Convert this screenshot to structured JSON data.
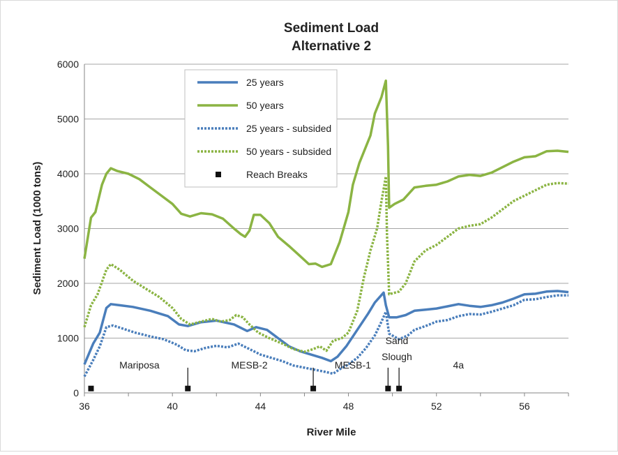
{
  "chart_data": {
    "type": "line",
    "title": "Sediment Load",
    "subtitle": "Alternative 2",
    "xlabel": "River Mile",
    "ylabel": "Sediment Load (1000 tons)",
    "xlim": [
      36,
      58
    ],
    "ylim": [
      0,
      6000
    ],
    "x_ticks": [
      36,
      40,
      44,
      48,
      52,
      56
    ],
    "y_ticks": [
      0,
      1000,
      2000,
      3000,
      4000,
      5000,
      6000
    ],
    "grid": "horizontal",
    "legend_position": "top-left",
    "colors": {
      "blue": "#4a7ebb",
      "green": "#8bb443",
      "marker": "#111111"
    },
    "series": [
      {
        "name": "25 years",
        "style": "solid",
        "color": "#4a7ebb",
        "points": [
          [
            36.0,
            520
          ],
          [
            36.4,
            900
          ],
          [
            36.7,
            1100
          ],
          [
            37.0,
            1550
          ],
          [
            37.2,
            1620
          ],
          [
            37.6,
            1600
          ],
          [
            38.2,
            1570
          ],
          [
            39.0,
            1500
          ],
          [
            39.8,
            1400
          ],
          [
            40.3,
            1250
          ],
          [
            40.7,
            1220
          ],
          [
            41.3,
            1290
          ],
          [
            42.0,
            1320
          ],
          [
            42.8,
            1250
          ],
          [
            43.4,
            1130
          ],
          [
            43.8,
            1200
          ],
          [
            44.3,
            1150
          ],
          [
            44.8,
            1000
          ],
          [
            45.3,
            850
          ],
          [
            45.8,
            760
          ],
          [
            46.3,
            700
          ],
          [
            46.8,
            640
          ],
          [
            47.2,
            580
          ],
          [
            47.5,
            660
          ],
          [
            47.9,
            850
          ],
          [
            48.4,
            1150
          ],
          [
            48.9,
            1450
          ],
          [
            49.2,
            1650
          ],
          [
            49.6,
            1830
          ],
          [
            49.7,
            1600
          ],
          [
            49.85,
            1380
          ],
          [
            50.2,
            1380
          ],
          [
            50.6,
            1420
          ],
          [
            51.0,
            1500
          ],
          [
            51.5,
            1520
          ],
          [
            52.0,
            1540
          ],
          [
            52.5,
            1580
          ],
          [
            53.0,
            1620
          ],
          [
            53.5,
            1590
          ],
          [
            54.0,
            1570
          ],
          [
            54.5,
            1600
          ],
          [
            55.0,
            1650
          ],
          [
            55.5,
            1720
          ],
          [
            56.0,
            1800
          ],
          [
            56.5,
            1810
          ],
          [
            57.0,
            1850
          ],
          [
            57.5,
            1860
          ],
          [
            58.0,
            1840
          ]
        ]
      },
      {
        "name": "50 years",
        "style": "solid",
        "color": "#8bb443",
        "points": [
          [
            36.0,
            2450
          ],
          [
            36.3,
            3200
          ],
          [
            36.5,
            3300
          ],
          [
            36.8,
            3800
          ],
          [
            37.0,
            4000
          ],
          [
            37.2,
            4100
          ],
          [
            37.5,
            4050
          ],
          [
            38.0,
            4000
          ],
          [
            38.5,
            3900
          ],
          [
            39.0,
            3750
          ],
          [
            39.5,
            3600
          ],
          [
            40.0,
            3450
          ],
          [
            40.4,
            3270
          ],
          [
            40.8,
            3220
          ],
          [
            41.3,
            3280
          ],
          [
            41.8,
            3260
          ],
          [
            42.3,
            3180
          ],
          [
            42.8,
            3000
          ],
          [
            43.1,
            2900
          ],
          [
            43.3,
            2850
          ],
          [
            43.5,
            2960
          ],
          [
            43.7,
            3250
          ],
          [
            44.0,
            3250
          ],
          [
            44.4,
            3100
          ],
          [
            44.8,
            2850
          ],
          [
            45.3,
            2680
          ],
          [
            45.8,
            2500
          ],
          [
            46.2,
            2350
          ],
          [
            46.5,
            2360
          ],
          [
            46.8,
            2300
          ],
          [
            47.2,
            2350
          ],
          [
            47.6,
            2750
          ],
          [
            48.0,
            3300
          ],
          [
            48.2,
            3800
          ],
          [
            48.5,
            4200
          ],
          [
            49.0,
            4700
          ],
          [
            49.2,
            5100
          ],
          [
            49.5,
            5400
          ],
          [
            49.7,
            5700
          ],
          [
            49.8,
            4500
          ],
          [
            49.85,
            3380
          ],
          [
            50.1,
            3450
          ],
          [
            50.5,
            3530
          ],
          [
            51.0,
            3750
          ],
          [
            51.5,
            3780
          ],
          [
            52.0,
            3800
          ],
          [
            52.5,
            3860
          ],
          [
            53.0,
            3950
          ],
          [
            53.5,
            3980
          ],
          [
            54.0,
            3960
          ],
          [
            54.5,
            4020
          ],
          [
            55.0,
            4120
          ],
          [
            55.5,
            4220
          ],
          [
            56.0,
            4300
          ],
          [
            56.5,
            4320
          ],
          [
            57.0,
            4410
          ],
          [
            57.5,
            4420
          ],
          [
            58.0,
            4400
          ]
        ]
      },
      {
        "name": "25 years - subsided",
        "style": "dotted",
        "color": "#4a7ebb",
        "points": [
          [
            36.0,
            300
          ],
          [
            36.4,
            600
          ],
          [
            36.7,
            850
          ],
          [
            37.0,
            1200
          ],
          [
            37.3,
            1230
          ],
          [
            37.7,
            1180
          ],
          [
            38.3,
            1100
          ],
          [
            39.0,
            1030
          ],
          [
            39.6,
            980
          ],
          [
            40.2,
            880
          ],
          [
            40.6,
            780
          ],
          [
            41.0,
            760
          ],
          [
            41.5,
            820
          ],
          [
            42.0,
            860
          ],
          [
            42.5,
            830
          ],
          [
            43.0,
            900
          ],
          [
            43.5,
            800
          ],
          [
            44.0,
            700
          ],
          [
            44.5,
            640
          ],
          [
            45.0,
            580
          ],
          [
            45.5,
            500
          ],
          [
            46.0,
            460
          ],
          [
            46.5,
            420
          ],
          [
            47.0,
            380
          ],
          [
            47.3,
            350
          ],
          [
            47.6,
            430
          ],
          [
            48.0,
            520
          ],
          [
            48.4,
            640
          ],
          [
            48.8,
            820
          ],
          [
            49.2,
            1050
          ],
          [
            49.5,
            1300
          ],
          [
            49.7,
            1480
          ],
          [
            49.85,
            1080
          ],
          [
            50.3,
            980
          ],
          [
            50.7,
            1050
          ],
          [
            51.0,
            1150
          ],
          [
            51.5,
            1220
          ],
          [
            52.0,
            1300
          ],
          [
            52.5,
            1330
          ],
          [
            53.0,
            1400
          ],
          [
            53.5,
            1440
          ],
          [
            54.0,
            1430
          ],
          [
            54.5,
            1480
          ],
          [
            55.0,
            1540
          ],
          [
            55.5,
            1600
          ],
          [
            56.0,
            1700
          ],
          [
            56.5,
            1710
          ],
          [
            57.0,
            1750
          ],
          [
            57.5,
            1780
          ],
          [
            58.0,
            1780
          ]
        ]
      },
      {
        "name": "50 years - subsided",
        "style": "dotted",
        "color": "#8bb443",
        "points": [
          [
            36.0,
            1200
          ],
          [
            36.3,
            1600
          ],
          [
            36.6,
            1800
          ],
          [
            37.0,
            2250
          ],
          [
            37.2,
            2350
          ],
          [
            37.6,
            2250
          ],
          [
            38.2,
            2050
          ],
          [
            38.8,
            1900
          ],
          [
            39.4,
            1750
          ],
          [
            40.0,
            1550
          ],
          [
            40.4,
            1350
          ],
          [
            40.8,
            1250
          ],
          [
            41.3,
            1300
          ],
          [
            41.8,
            1350
          ],
          [
            42.2,
            1300
          ],
          [
            42.6,
            1330
          ],
          [
            42.9,
            1420
          ],
          [
            43.2,
            1380
          ],
          [
            43.5,
            1250
          ],
          [
            43.9,
            1100
          ],
          [
            44.4,
            1000
          ],
          [
            45.0,
            900
          ],
          [
            45.5,
            800
          ],
          [
            46.0,
            750
          ],
          [
            46.4,
            800
          ],
          [
            46.7,
            850
          ],
          [
            47.0,
            770
          ],
          [
            47.3,
            950
          ],
          [
            47.7,
            1000
          ],
          [
            48.0,
            1100
          ],
          [
            48.4,
            1500
          ],
          [
            48.7,
            2100
          ],
          [
            49.0,
            2600
          ],
          [
            49.3,
            3000
          ],
          [
            49.5,
            3500
          ],
          [
            49.7,
            3950
          ],
          [
            49.75,
            2900
          ],
          [
            49.85,
            1800
          ],
          [
            50.3,
            1850
          ],
          [
            50.6,
            2000
          ],
          [
            51.0,
            2400
          ],
          [
            51.5,
            2600
          ],
          [
            52.0,
            2700
          ],
          [
            52.5,
            2850
          ],
          [
            53.0,
            3000
          ],
          [
            53.5,
            3050
          ],
          [
            54.0,
            3080
          ],
          [
            54.5,
            3200
          ],
          [
            55.0,
            3350
          ],
          [
            55.5,
            3500
          ],
          [
            56.0,
            3600
          ],
          [
            56.5,
            3700
          ],
          [
            57.0,
            3800
          ],
          [
            57.5,
            3830
          ],
          [
            58.0,
            3820
          ]
        ]
      },
      {
        "name": "Reach Breaks",
        "style": "marker",
        "color": "#111111",
        "x": [
          36.3,
          40.7,
          46.4,
          49.8,
          50.3
        ],
        "y": [
          80,
          80,
          80,
          80,
          80
        ]
      }
    ],
    "reach_labels": [
      {
        "text": "Mariposa",
        "x": 38.5
      },
      {
        "text": "MESB-2",
        "x": 43.5
      },
      {
        "text": "MESB-1",
        "x": 48.2
      },
      {
        "text": "Sand",
        "x": 50.2
      },
      {
        "text": "Slough",
        "x": 50.2
      },
      {
        "text": "4a",
        "x": 53.0
      }
    ],
    "reach_break_lines": [
      40.7,
      46.4,
      49.8,
      50.3
    ]
  }
}
